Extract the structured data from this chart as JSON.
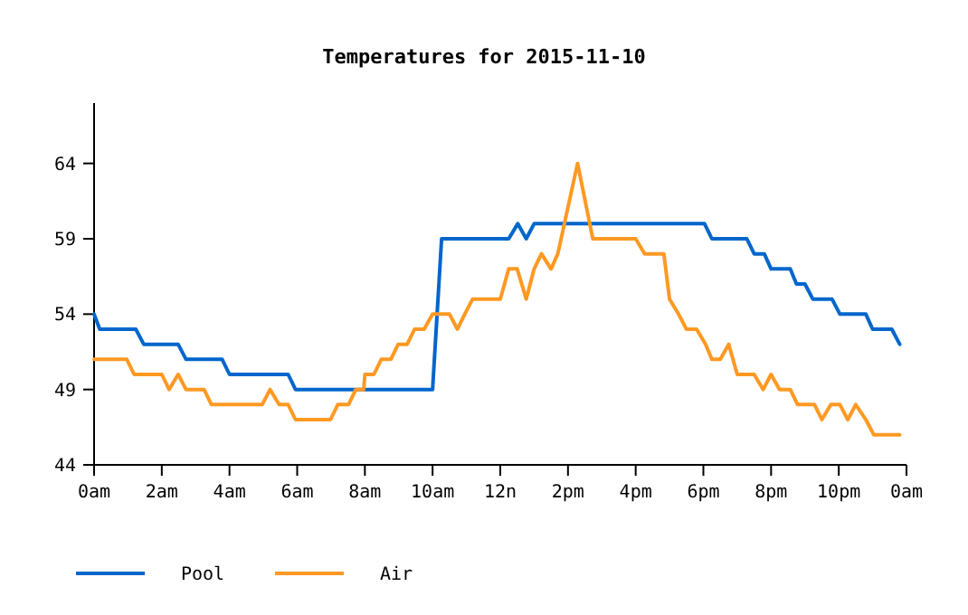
{
  "chart_data": {
    "type": "line",
    "title": "Temperatures for 2015-11-10",
    "xlim": [
      "2015-11-10T00:00",
      "2015-11-11T00:00"
    ],
    "ylim": [
      44,
      68
    ],
    "xticks": [
      {
        "value": "2015-11-10T00:00",
        "label": "0am"
      },
      {
        "value": "2015-11-10T02:00",
        "label": "2am"
      },
      {
        "value": "2015-11-10T04:00",
        "label": "4am"
      },
      {
        "value": "2015-11-10T06:00",
        "label": "6am"
      },
      {
        "value": "2015-11-10T08:00",
        "label": "8am"
      },
      {
        "value": "2015-11-10T10:00",
        "label": "10am"
      },
      {
        "value": "2015-11-10T12:00",
        "label": "12n"
      },
      {
        "value": "2015-11-10T14:00",
        "label": "2pm"
      },
      {
        "value": "2015-11-10T16:00",
        "label": "4pm"
      },
      {
        "value": "2015-11-10T18:00",
        "label": "6pm"
      },
      {
        "value": "2015-11-10T20:00",
        "label": "8pm"
      },
      {
        "value": "2015-11-10T22:00",
        "label": "10pm"
      },
      {
        "value": "2015-11-11T00:00",
        "label": "0am"
      }
    ],
    "yticks": [
      44,
      49,
      54,
      59,
      64
    ],
    "grid": false,
    "legend": "bottom",
    "marker": "none",
    "line_style": "solid",
    "series": [
      {
        "name": "Pool",
        "color": "#0066cc",
        "x": [
          "2015-11-10T00:00",
          "2015-11-10T00:10",
          "2015-11-10T01:14",
          "2015-11-10T01:28",
          "2015-11-10T02:29",
          "2015-11-10T02:43",
          "2015-11-10T03:47",
          "2015-11-10T04:00",
          "2015-11-10T05:44",
          "2015-11-10T05:57",
          "2015-11-10T10:00",
          "2015-11-10T10:16",
          "2015-11-10T12:15",
          "2015-11-10T12:31",
          "2015-11-10T12:46",
          "2015-11-10T13:00",
          "2015-11-10T18:02",
          "2015-11-10T18:15",
          "2015-11-10T19:17",
          "2015-11-10T19:30",
          "2015-11-10T19:48",
          "2015-11-10T20:00",
          "2015-11-10T20:34",
          "2015-11-10T20:45",
          "2015-11-10T21:00",
          "2015-11-10T21:14",
          "2015-11-10T21:48",
          "2015-11-10T22:02",
          "2015-11-10T22:48",
          "2015-11-10T23:00",
          "2015-11-10T23:34",
          "2015-11-10T23:48"
        ],
        "values": [
          54,
          53,
          53,
          52,
          52,
          51,
          51,
          50,
          50,
          49,
          49,
          59,
          59,
          60,
          59,
          60,
          60,
          59,
          59,
          58,
          58,
          57,
          57,
          56,
          56,
          55,
          55,
          54,
          54,
          53,
          53,
          52
        ]
      },
      {
        "name": "Air",
        "color": "#ff9922",
        "x": [
          "2015-11-10T00:00",
          "2015-11-10T00:58",
          "2015-11-10T01:11",
          "2015-11-10T02:00",
          "2015-11-10T02:13",
          "2015-11-10T02:29",
          "2015-11-10T02:43",
          "2015-11-10T03:15",
          "2015-11-10T03:28",
          "2015-11-10T04:58",
          "2015-11-10T05:12",
          "2015-11-10T05:28",
          "2015-11-10T05:44",
          "2015-11-10T05:57",
          "2015-11-10T06:59",
          "2015-11-10T07:12",
          "2015-11-10T07:31",
          "2015-11-10T07:44",
          "2015-11-10T07:58",
          "2015-11-10T08:00",
          "2015-11-10T08:16",
          "2015-11-10T08:29",
          "2015-11-10T08:46",
          "2015-11-10T08:59",
          "2015-11-10T09:15",
          "2015-11-10T09:28",
          "2015-11-10T09:45",
          "2015-11-10T10:00",
          "2015-11-10T10:30",
          "2015-11-10T10:44",
          "2015-11-10T10:57",
          "2015-11-10T11:11",
          "2015-11-10T12:00",
          "2015-11-10T12:15",
          "2015-11-10T12:30",
          "2015-11-10T12:46",
          "2015-11-10T13:00",
          "2015-11-10T13:13",
          "2015-11-10T13:30",
          "2015-11-10T13:42",
          "2015-11-10T14:17",
          "2015-11-10T14:44",
          "2015-11-10T16:00",
          "2015-11-10T16:16",
          "2015-11-10T16:50",
          "2015-11-10T17:00",
          "2015-11-10T17:16",
          "2015-11-10T17:30",
          "2015-11-10T17:48",
          "2015-11-10T18:04",
          "2015-11-10T18:15",
          "2015-11-10T18:30",
          "2015-11-10T18:45",
          "2015-11-10T19:00",
          "2015-11-10T19:30",
          "2015-11-10T19:46",
          "2015-11-10T20:00",
          "2015-11-10T20:15",
          "2015-11-10T20:34",
          "2015-11-10T20:47",
          "2015-11-10T21:17",
          "2015-11-10T21:30",
          "2015-11-10T21:46",
          "2015-11-10T22:02",
          "2015-11-10T22:16",
          "2015-11-10T22:30",
          "2015-11-10T22:48",
          "2015-11-10T23:02",
          "2015-11-10T23:48"
        ],
        "values": [
          51,
          51,
          50,
          50,
          49,
          50,
          49,
          49,
          48,
          48,
          49,
          48,
          48,
          47,
          47,
          48,
          48,
          49,
          49,
          50,
          50,
          51,
          51,
          52,
          52,
          53,
          53,
          54,
          54,
          53,
          54,
          55,
          55,
          57,
          57,
          55,
          57,
          58,
          57,
          58,
          64,
          59,
          59,
          58,
          58,
          55,
          54,
          53,
          53,
          52,
          51,
          51,
          52,
          50,
          50,
          49,
          50,
          49,
          49,
          48,
          48,
          47,
          48,
          48,
          47,
          48,
          47,
          46,
          46
        ]
      }
    ]
  }
}
